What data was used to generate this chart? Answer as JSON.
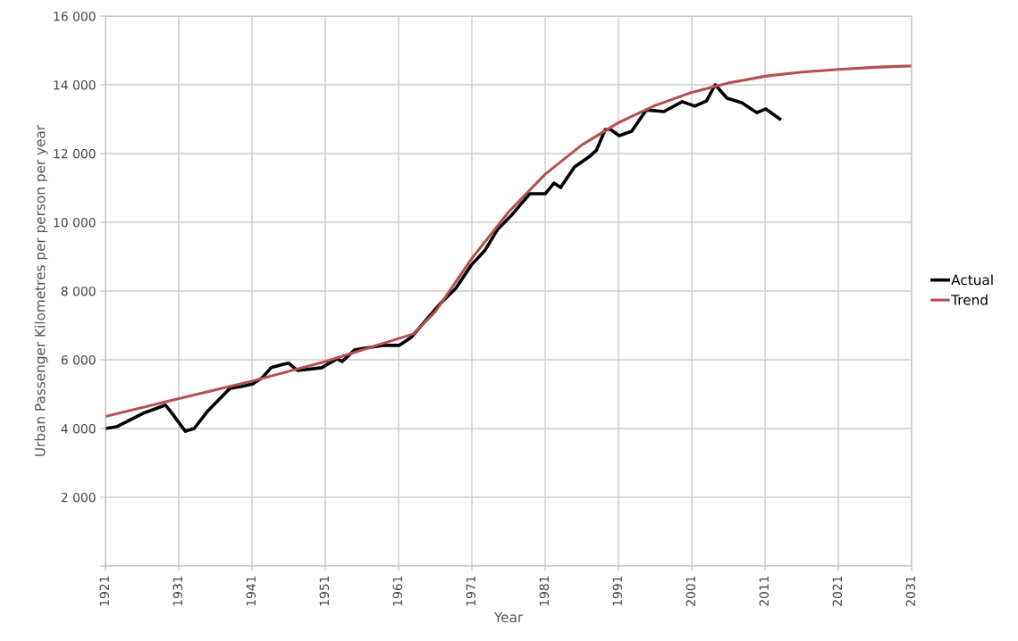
{
  "chart_data": {
    "type": "line",
    "xlabel": "Year",
    "ylabel": "Urban Passenger Kilometres per person per year",
    "xlim": [
      1921,
      2031
    ],
    "xticks": [
      1921,
      1931,
      1941,
      1951,
      1961,
      1971,
      1981,
      1991,
      2001,
      2011,
      2021,
      2031
    ],
    "ylim": [
      0,
      16000
    ],
    "yticks": [
      {
        "value": 0,
        "label": null
      },
      {
        "value": 2000,
        "label": "2 000"
      },
      {
        "value": 4000,
        "label": "4 000"
      },
      {
        "value": 6000,
        "label": "6 000"
      },
      {
        "value": 8000,
        "label": "8 000"
      },
      {
        "value": 10000,
        "label": "10 000"
      },
      {
        "value": 12000,
        "label": "12 000"
      },
      {
        "value": 14000,
        "label": "14 000"
      },
      {
        "value": 16000,
        "label": "16 000"
      }
    ],
    "grid": true,
    "legend": "right",
    "marker": "none",
    "line_style": "solid",
    "series": [
      {
        "name": "Actual",
        "color": "#000000",
        "x": [
          1921,
          1922.5,
          1926.1,
          1929.2,
          1930.1,
          1931.9,
          1933.1,
          1935,
          1938,
          1939.5,
          1941.1,
          1942.4,
          1943.6,
          1945.3,
          1946,
          1947.2,
          1950.5,
          1952.6,
          1953.3,
          1955,
          1959,
          1961.1,
          1962.7,
          1966.7,
          1968.8,
          1970.9,
          1972.8,
          1974.5,
          1976.5,
          1978.9,
          1981,
          1982.2,
          1983.1,
          1985,
          1987.1,
          1988,
          1989.2,
          1989.9,
          1991.1,
          1992.8,
          1994.8,
          1997.2,
          1999.7,
          2001.4,
          2003,
          2004.2,
          2005.8,
          2007.8,
          2009.9,
          2011.1,
          2013
        ],
        "values": [
          4000,
          4050,
          4440,
          4680,
          4440,
          3920,
          4000,
          4520,
          5170,
          5220,
          5300,
          5480,
          5770,
          5870,
          5900,
          5690,
          5770,
          6030,
          5950,
          6290,
          6420,
          6420,
          6650,
          7640,
          8080,
          8750,
          9190,
          9790,
          10230,
          10830,
          10830,
          11140,
          11010,
          11610,
          11920,
          12100,
          12700,
          12700,
          12520,
          12650,
          13270,
          13220,
          13510,
          13380,
          13530,
          14000,
          13610,
          13480,
          13190,
          13300,
          13010
        ]
      },
      {
        "name": "Trend",
        "color": "#b5504f",
        "x": [
          1921,
          1931,
          1941,
          1951,
          1961,
          1963,
          1966,
          1971,
          1976,
          1981,
          1986,
          1991,
          1996,
          2001,
          2006,
          2011,
          2016,
          2021,
          2026,
          2031
        ],
        "values": [
          4350,
          4870,
          5380,
          5950,
          6620,
          6750,
          7400,
          8950,
          10300,
          11400,
          12250,
          12900,
          13400,
          13780,
          14050,
          14250,
          14370,
          14450,
          14510,
          14550
        ]
      }
    ]
  }
}
